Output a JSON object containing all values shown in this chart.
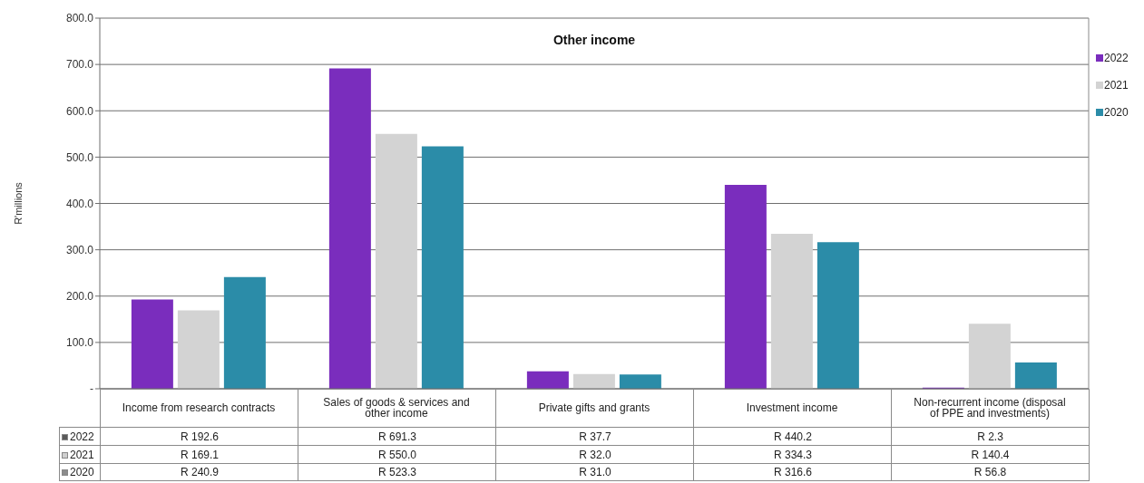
{
  "chart_data": {
    "type": "bar",
    "title": "Other income",
    "ylabel": "R'millions",
    "categories": [
      "Income from research contracts",
      "Sales of goods & services and other income",
      "Private gifts and grants",
      "Investment income",
      "Non-recurrent income (disposal of PPE and investments)"
    ],
    "series": [
      {
        "name": "2022",
        "color": "#7a2dbd",
        "values": [
          192.6,
          691.3,
          37.7,
          440.2,
          2.3
        ],
        "value_labels": [
          "R 192.6",
          "R 691.3",
          "R 37.7",
          "R 440.2",
          "R 2.3"
        ]
      },
      {
        "name": "2021",
        "color": "#d3d3d3",
        "values": [
          169.1,
          550.0,
          32.0,
          334.3,
          140.4
        ],
        "value_labels": [
          "R 169.1",
          "R 550.0",
          "R 32.0",
          "R 334.3",
          "R 140.4"
        ]
      },
      {
        "name": "2020",
        "color": "#2b8ca8",
        "values": [
          240.9,
          523.3,
          31.0,
          316.6,
          56.8
        ],
        "value_labels": [
          "R 240.9",
          "R 523.3",
          "R 31.0",
          "R 316.6",
          "R 56.8"
        ]
      }
    ],
    "ylim": [
      0,
      800
    ],
    "yticks": [
      {
        "value": 0,
        "label": "-"
      },
      {
        "value": 100,
        "label": "100.0"
      },
      {
        "value": 200,
        "label": "200.0"
      },
      {
        "value": 300,
        "label": "300.0"
      },
      {
        "value": 400,
        "label": "400.0"
      },
      {
        "value": 500,
        "label": "500.0"
      },
      {
        "value": 600,
        "label": "600.0"
      },
      {
        "value": 700,
        "label": "700.0"
      },
      {
        "value": 800,
        "label": "800.0"
      }
    ],
    "grid": "y",
    "legend": "top right"
  }
}
